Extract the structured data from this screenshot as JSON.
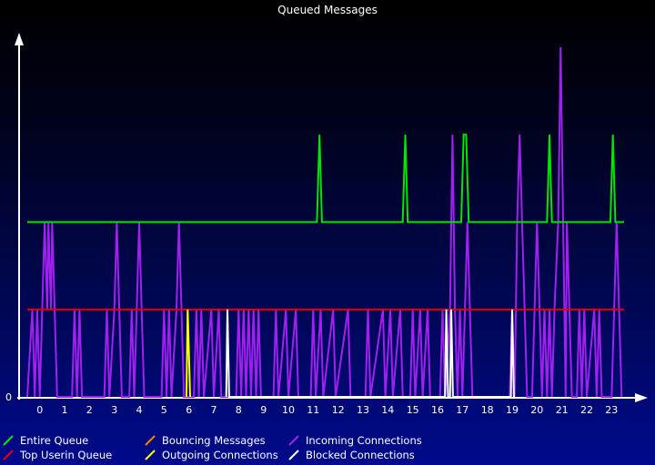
{
  "chart_data": {
    "type": "line",
    "title": "Queued Messages",
    "xlabel": "",
    "ylabel": "",
    "x_ticks": [
      "0",
      "1",
      "2",
      "3",
      "4",
      "5",
      "6",
      "7",
      "8",
      "9",
      "10",
      "11",
      "12",
      "13",
      "14",
      "15",
      "16",
      "17",
      "18",
      "19",
      "20",
      "21",
      "22",
      "23"
    ],
    "y_ticks": [
      "0"
    ],
    "xlim": [
      -0.5,
      23.5
    ],
    "ylim": [
      0,
      4
    ],
    "grid": false,
    "legend_position": "bottom",
    "series": [
      {
        "name": "Entire Queue",
        "color": "#00e600",
        "points": [
          [
            -0.5,
            2
          ],
          [
            11.15,
            2
          ],
          [
            11.25,
            3
          ],
          [
            11.35,
            2
          ],
          [
            14.6,
            2
          ],
          [
            14.7,
            3
          ],
          [
            14.8,
            2
          ],
          [
            16.95,
            2
          ],
          [
            17.05,
            3
          ],
          [
            17.15,
            3
          ],
          [
            17.25,
            2
          ],
          [
            20.4,
            2
          ],
          [
            20.5,
            3
          ],
          [
            20.6,
            2
          ],
          [
            22.95,
            2
          ],
          [
            23.05,
            3
          ],
          [
            23.15,
            2
          ],
          [
            23.5,
            2
          ]
        ]
      },
      {
        "name": "Top Userin Queue",
        "color": "#e60000",
        "points": [
          [
            -0.5,
            1
          ],
          [
            23.5,
            1
          ]
        ]
      },
      {
        "name": "Bouncing Messages",
        "color": "#ff8000",
        "points": []
      },
      {
        "name": "Outgoing Connections",
        "color": "#ffff00",
        "points": [
          [
            5.9,
            0
          ],
          [
            5.95,
            1
          ],
          [
            6.05,
            0
          ]
        ]
      },
      {
        "name": "Incoming Connections",
        "color": "#a020f0",
        "points": [
          [
            -0.5,
            0
          ],
          [
            -0.3,
            1
          ],
          [
            -0.2,
            0
          ],
          [
            -0.1,
            1
          ],
          [
            0,
            0
          ],
          [
            0.1,
            1
          ],
          [
            0.2,
            2
          ],
          [
            0.3,
            1
          ],
          [
            0.35,
            2
          ],
          [
            0.45,
            1
          ],
          [
            0.5,
            2
          ],
          [
            0.6,
            1
          ],
          [
            0.7,
            0
          ],
          [
            1.3,
            0
          ],
          [
            1.4,
            1
          ],
          [
            1.5,
            0
          ],
          [
            1.6,
            1
          ],
          [
            1.7,
            0
          ],
          [
            2.6,
            0
          ],
          [
            2.7,
            1
          ],
          [
            2.8,
            0
          ],
          [
            3.0,
            1
          ],
          [
            3.1,
            2
          ],
          [
            3.2,
            1
          ],
          [
            3.3,
            0
          ],
          [
            3.6,
            0
          ],
          [
            3.7,
            1
          ],
          [
            3.8,
            0
          ],
          [
            3.9,
            1
          ],
          [
            4.0,
            2
          ],
          [
            4.1,
            1
          ],
          [
            4.2,
            0
          ],
          [
            4.9,
            0
          ],
          [
            5.0,
            1
          ],
          [
            5.1,
            0
          ],
          [
            5.2,
            1
          ],
          [
            5.3,
            0
          ],
          [
            5.5,
            1
          ],
          [
            5.6,
            2
          ],
          [
            5.7,
            1
          ],
          [
            5.8,
            0
          ],
          [
            6.2,
            0
          ],
          [
            6.3,
            1
          ],
          [
            6.4,
            0
          ],
          [
            6.5,
            1
          ],
          [
            6.6,
            0
          ],
          [
            6.9,
            1
          ],
          [
            7.0,
            0
          ],
          [
            7.2,
            1
          ],
          [
            7.3,
            0
          ],
          [
            7.9,
            0
          ],
          [
            8.0,
            1
          ],
          [
            8.1,
            0
          ],
          [
            8.2,
            1
          ],
          [
            8.3,
            0
          ],
          [
            8.4,
            1
          ],
          [
            8.5,
            0
          ],
          [
            8.6,
            1
          ],
          [
            8.7,
            0
          ],
          [
            8.8,
            1
          ],
          [
            8.9,
            0
          ],
          [
            9.4,
            0
          ],
          [
            9.5,
            1
          ],
          [
            9.6,
            0
          ],
          [
            9.9,
            1
          ],
          [
            10.0,
            0
          ],
          [
            10.3,
            1
          ],
          [
            10.4,
            0
          ],
          [
            10.9,
            0
          ],
          [
            11.0,
            1
          ],
          [
            11.1,
            0
          ],
          [
            11.3,
            1
          ],
          [
            11.4,
            0
          ],
          [
            11.8,
            1
          ],
          [
            11.9,
            0
          ],
          [
            12.4,
            1
          ],
          [
            12.5,
            0
          ],
          [
            13.1,
            0
          ],
          [
            13.2,
            1
          ],
          [
            13.3,
            0
          ],
          [
            13.8,
            1
          ],
          [
            13.9,
            0
          ],
          [
            14.1,
            1
          ],
          [
            14.2,
            0
          ],
          [
            14.5,
            1
          ],
          [
            14.6,
            0
          ],
          [
            14.9,
            0
          ],
          [
            15.0,
            1
          ],
          [
            15.1,
            0
          ],
          [
            15.3,
            1
          ],
          [
            15.4,
            0
          ],
          [
            15.6,
            1
          ],
          [
            15.7,
            0
          ],
          [
            16.1,
            0
          ],
          [
            16.2,
            1
          ],
          [
            16.3,
            0
          ],
          [
            16.5,
            1
          ],
          [
            16.6,
            3
          ],
          [
            16.7,
            1
          ],
          [
            16.8,
            0
          ],
          [
            16.9,
            1
          ],
          [
            17.0,
            0
          ],
          [
            17.1,
            1
          ],
          [
            17.2,
            2
          ],
          [
            17.3,
            1
          ],
          [
            17.4,
            0
          ],
          [
            18.9,
            0
          ],
          [
            19.0,
            1
          ],
          [
            19.1,
            0
          ],
          [
            19.2,
            2
          ],
          [
            19.3,
            3
          ],
          [
            19.4,
            2
          ],
          [
            19.5,
            1
          ],
          [
            19.6,
            0
          ],
          [
            19.8,
            0
          ],
          [
            19.9,
            1
          ],
          [
            20.0,
            2
          ],
          [
            20.1,
            1
          ],
          [
            20.2,
            0
          ],
          [
            20.3,
            1
          ],
          [
            20.4,
            0
          ],
          [
            20.5,
            1
          ],
          [
            20.6,
            0
          ],
          [
            20.7,
            1
          ],
          [
            20.85,
            2
          ],
          [
            20.95,
            4
          ],
          [
            21.05,
            2
          ],
          [
            21.1,
            1
          ],
          [
            21.15,
            0
          ],
          [
            21.2,
            2
          ],
          [
            21.3,
            1
          ],
          [
            21.4,
            0
          ],
          [
            21.6,
            0
          ],
          [
            21.7,
            1
          ],
          [
            21.8,
            0
          ],
          [
            21.9,
            1
          ],
          [
            22.0,
            0
          ],
          [
            22.3,
            1
          ],
          [
            22.4,
            0
          ],
          [
            22.5,
            1
          ],
          [
            22.6,
            0
          ],
          [
            23.0,
            0
          ],
          [
            23.1,
            1
          ],
          [
            23.2,
            2
          ],
          [
            23.3,
            1
          ],
          [
            23.4,
            0
          ]
        ]
      },
      {
        "name": "Blocked Connections",
        "color": "#ffffff",
        "points": [
          [
            7.5,
            0
          ],
          [
            7.55,
            1
          ],
          [
            7.62,
            0
          ],
          [
            16.3,
            0
          ],
          [
            16.35,
            1
          ],
          [
            16.42,
            0
          ],
          [
            16.5,
            0
          ],
          [
            16.55,
            1
          ],
          [
            16.62,
            0
          ],
          [
            18.95,
            0
          ],
          [
            19.0,
            1
          ],
          [
            19.07,
            0
          ]
        ]
      }
    ]
  }
}
